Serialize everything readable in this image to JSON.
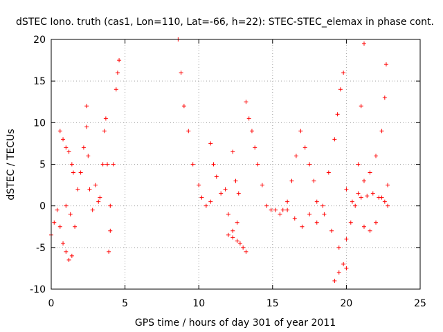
{
  "chart_data": {
    "type": "scatter",
    "title": "dSTEC Iono. truth (cas1, Lon=110, Lat=-66, h=22): STEC-STEC_elemax in phase cont.",
    "xlabel": "GPS time / hours of day 301 of year 2011",
    "ylabel": "dSTEC  / TECUs",
    "xlim": [
      0,
      25
    ],
    "ylim": [
      -10,
      20
    ],
    "xticks": [
      0,
      5,
      10,
      15,
      20,
      25
    ],
    "yticks": [
      -10,
      -5,
      0,
      5,
      10,
      15,
      20
    ],
    "xtick_labels": [
      "0",
      "5",
      "10",
      "15",
      "20",
      "25"
    ],
    "ytick_labels": [
      "-10",
      "-5",
      "0",
      "5",
      "10",
      "15",
      "20"
    ],
    "grid": true,
    "legend": "none",
    "marker": "plus",
    "color": "#ff0000",
    "series": [
      {
        "x": [
          0.0,
          0.2,
          0.4,
          0.6,
          0.8,
          1.0,
          1.2,
          1.4
        ],
        "y": [
          -3.5,
          -2.0,
          -0.5,
          -2.5,
          -4.5,
          -5.5,
          -6.5,
          -6.0
        ]
      },
      {
        "x": [
          0.6,
          0.8,
          1.0,
          1.2,
          1.4,
          1.5
        ],
        "y": [
          9.0,
          8.0,
          7.0,
          6.5,
          5.0,
          4.0
        ]
      },
      {
        "x": [
          1.0,
          1.3,
          1.6,
          1.8,
          2.0,
          2.2,
          2.4
        ],
        "y": [
          0.0,
          -1.0,
          -2.5,
          2.0,
          4.0,
          7.0,
          9.5
        ]
      },
      {
        "x": [
          2.4,
          2.5,
          2.6,
          2.8,
          3.0,
          3.2
        ],
        "y": [
          12.0,
          6.0,
          2.0,
          -0.5,
          2.5,
          0.5
        ]
      },
      {
        "x": [
          3.3,
          3.5,
          3.6,
          3.7,
          3.8,
          3.9,
          4.0
        ],
        "y": [
          1.0,
          5.0,
          9.0,
          10.5,
          5.0,
          -5.5,
          -3.0
        ]
      },
      {
        "x": [
          4.0,
          4.2,
          4.4,
          4.5,
          4.6
        ],
        "y": [
          0.0,
          5.0,
          14.0,
          16.0,
          17.5
        ]
      },
      {
        "x": [
          8.6,
          8.8,
          9.0,
          9.3,
          9.6,
          10.0,
          10.2,
          10.5,
          10.8
        ],
        "y": [
          20.0,
          16.0,
          12.0,
          9.0,
          5.0,
          2.5,
          1.0,
          0.0,
          0.5
        ]
      },
      {
        "x": [
          10.8,
          11.0,
          11.2,
          11.5,
          11.8,
          12.0,
          12.3,
          12.6
        ],
        "y": [
          7.5,
          5.0,
          3.5,
          1.5,
          2.0,
          -1.0,
          -3.0,
          -2.0
        ]
      },
      {
        "x": [
          12.0,
          12.3,
          12.6,
          12.8,
          13.0,
          13.2
        ],
        "y": [
          -3.5,
          -3.8,
          -4.2,
          -4.5,
          -5.0,
          -5.5
        ]
      },
      {
        "x": [
          12.3,
          12.5,
          12.7
        ],
        "y": [
          6.5,
          3.0,
          1.5
        ]
      },
      {
        "x": [
          13.2,
          13.4,
          13.6,
          13.8,
          14.0,
          14.3,
          14.6,
          14.9,
          15.2
        ],
        "y": [
          12.5,
          10.5,
          9.0,
          7.0,
          5.0,
          2.5,
          0.0,
          -0.5,
          -0.5
        ]
      },
      {
        "x": [
          15.5,
          15.7,
          16.0,
          16.3,
          16.6,
          16.9,
          17.2,
          17.5,
          17.8
        ],
        "y": [
          -1.0,
          -0.5,
          0.5,
          3.0,
          6.0,
          9.0,
          7.0,
          5.0,
          3.0
        ]
      },
      {
        "x": [
          16.0,
          16.5,
          17.0,
          17.5,
          18.0,
          18.5,
          19.0,
          19.5,
          20.0
        ],
        "y": [
          -0.5,
          -1.5,
          -2.5,
          -1.0,
          0.5,
          -1.0,
          -3.0,
          -5.0,
          -7.5
        ]
      },
      {
        "x": [
          18.0,
          18.4,
          18.8,
          19.2,
          19.4,
          19.6,
          19.8
        ],
        "y": [
          -2.0,
          0.0,
          4.0,
          8.0,
          11.0,
          14.0,
          16.0
        ]
      },
      {
        "x": [
          19.2,
          19.5,
          19.8,
          20.0,
          20.3,
          20.6,
          20.8,
          21.0,
          21.2
        ],
        "y": [
          -9.0,
          -8.0,
          -7.0,
          -4.0,
          -2.0,
          0.0,
          5.0,
          12.0,
          19.5
        ]
      },
      {
        "x": [
          20.0,
          20.4,
          20.8,
          21.2,
          21.6,
          22.0,
          22.4,
          22.6,
          22.7
        ],
        "y": [
          2.0,
          0.5,
          1.5,
          3.0,
          4.0,
          6.0,
          9.0,
          13.0,
          17.0
        ]
      },
      {
        "x": [
          21.0,
          21.4,
          21.8,
          22.2,
          22.6,
          22.8
        ],
        "y": [
          1.0,
          1.2,
          1.5,
          1.0,
          0.5,
          0.0
        ]
      },
      {
        "x": [
          21.2,
          21.6,
          22.0,
          22.4,
          22.8
        ],
        "y": [
          -2.5,
          -3.0,
          -2.0,
          1.0,
          2.5
        ]
      }
    ]
  }
}
